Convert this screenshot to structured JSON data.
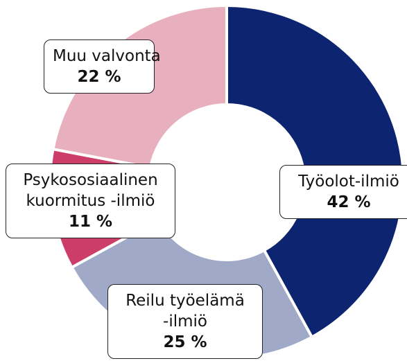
{
  "chart_data": {
    "type": "donut",
    "categories": [
      "Työolot-ilmiö",
      "Reilu työelämä\n-ilmiö",
      "Psykososiaalinen\nkuormitus -ilmiö",
      "Muu valvonta"
    ],
    "values": [
      42,
      25,
      11,
      22
    ],
    "value_labels": [
      "42 %",
      "25 %",
      "11 %",
      "22 %"
    ],
    "colors": [
      "#0d2470",
      "#a0aac8",
      "#cc3d6a",
      "#e8b0bf"
    ]
  }
}
